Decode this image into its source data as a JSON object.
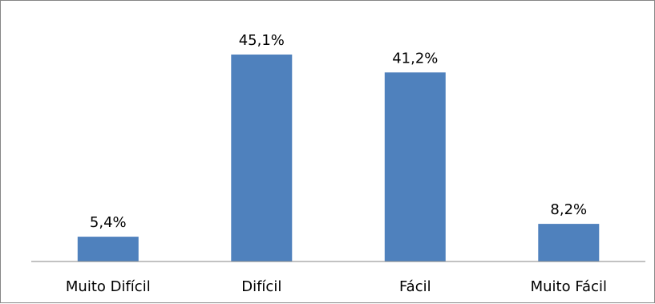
{
  "chart_data": {
    "type": "bar",
    "categories": [
      "Muito Difícil",
      "Difícil",
      "Fácil",
      "Muito Fácil"
    ],
    "values": [
      5.4,
      45.1,
      41.2,
      8.2
    ],
    "value_labels": [
      "5,4%",
      "45,1%",
      "41,2%",
      "8,2%"
    ],
    "ylim": [
      0,
      50
    ],
    "grid": false,
    "legend": "none",
    "bar_color": "#4f81bd",
    "axis_color": "#868686"
  }
}
